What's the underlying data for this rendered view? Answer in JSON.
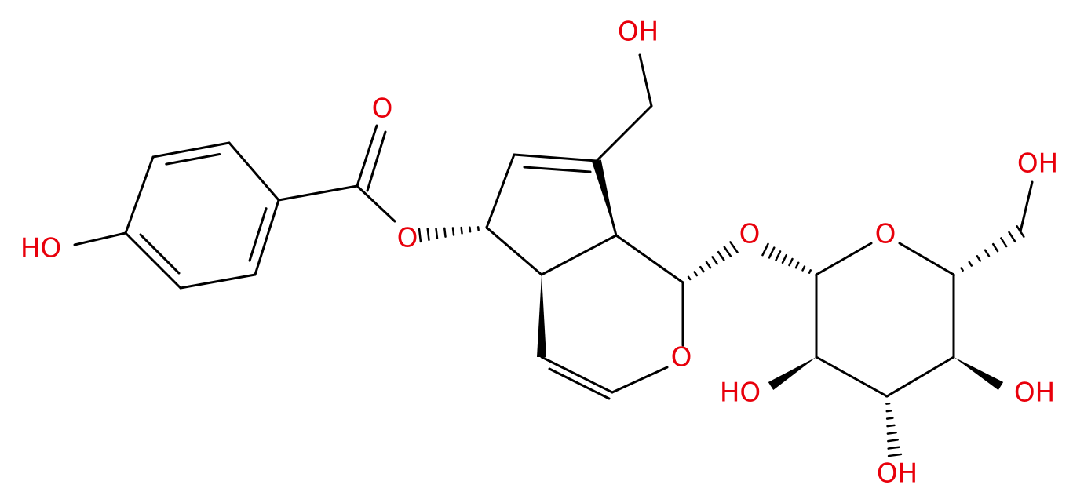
{
  "atoms": [
    {
      "label": "OH"
    },
    {
      "label": "O"
    },
    {
      "label": "HO"
    },
    {
      "label": "O"
    },
    {
      "label": "OH"
    },
    {
      "label": "O"
    },
    {
      "label": "O"
    },
    {
      "label": "O"
    },
    {
      "label": "HO"
    },
    {
      "label": "OH"
    },
    {
      "label": "OH"
    }
  ]
}
